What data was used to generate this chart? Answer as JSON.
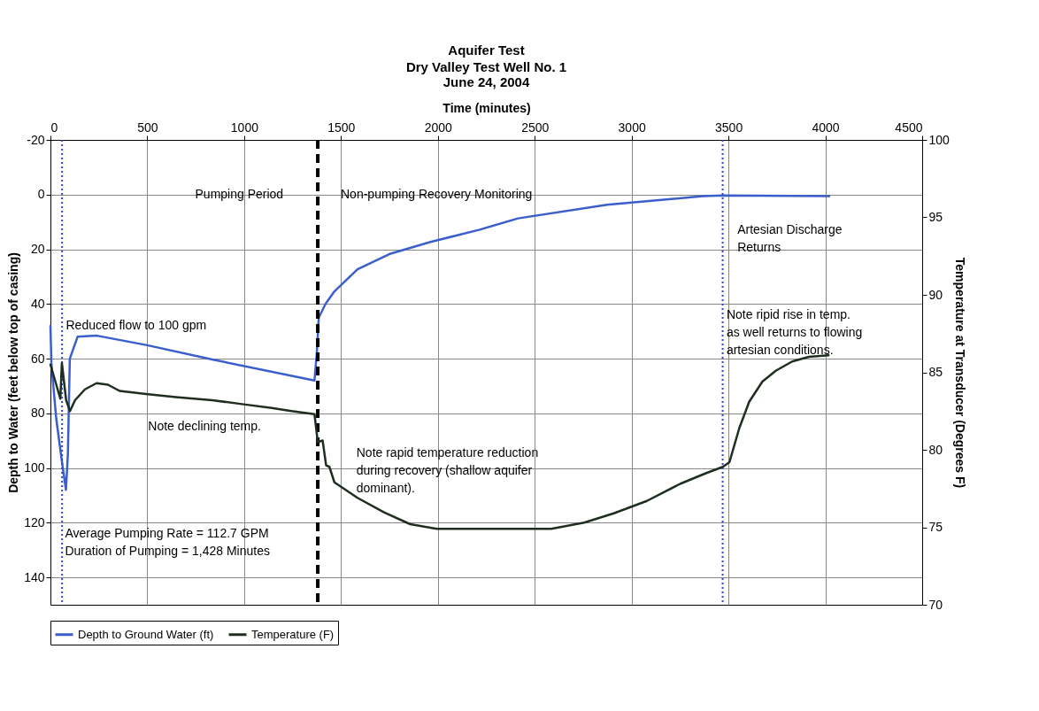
{
  "chart_data": {
    "type": "line",
    "title": "Aquifer Test",
    "subtitle": "Dry Valley Test Well No. 1\nJune 24, 2004",
    "xlabel": "Time (minutes)",
    "ylabel": "Depth to Water (feet below top of casing)",
    "y2label": "Temperature at Transducer (Degrees F)",
    "xlim": [
      0,
      4500
    ],
    "xticks": [
      0,
      500,
      1000,
      1500,
      2000,
      2500,
      3000,
      3500,
      4000,
      4500
    ],
    "ylim": [
      150,
      -20
    ],
    "yticks": [
      -20,
      0,
      20,
      40,
      60,
      80,
      100,
      120,
      140
    ],
    "y2lim": [
      70,
      100
    ],
    "y2ticks": [
      70,
      75,
      80,
      85,
      90,
      95,
      100
    ],
    "grid": true,
    "legend": "bottom",
    "marker": "none",
    "line_style": "solid",
    "series": [
      {
        "name": "Depth to Ground Water (ft)",
        "color": "#3a5fcd",
        "x": [
          0,
          5,
          30,
          60,
          80,
          90,
          100,
          140,
          240,
          494,
          835,
          1363,
          1375,
          1385,
          1420,
          1466,
          1585,
          1756,
          1958,
          2212,
          2414,
          2873,
          3369,
          3470,
          4020
        ],
        "values": [
          48,
          62,
          82,
          98,
          108,
          95,
          60,
          52,
          51.6,
          55,
          60.3,
          68,
          58,
          45,
          40,
          35.4,
          27.3,
          21.6,
          17.4,
          12.9,
          8.7,
          3.7,
          0.6,
          0.3,
          0.6
        ]
      },
      {
        "name": "Temperature (F)",
        "color": "#1f2f1f",
        "axis": "y2",
        "x": [
          0,
          51,
          59,
          81,
          101,
          127,
          178,
          238,
          297,
          357,
          494,
          647,
          835,
          988,
          1142,
          1244,
          1363,
          1380,
          1405,
          1423,
          1440,
          1466,
          1585,
          1722,
          1857,
          1994,
          2192,
          2499,
          2585,
          2755,
          2908,
          3079,
          3250,
          3386,
          3471,
          3505,
          3556,
          3607,
          3675,
          3744,
          3829,
          3915,
          4017
        ],
        "values": [
          85.5,
          83.3,
          85.6,
          83.2,
          82.5,
          83.2,
          83.9,
          84.3,
          84.2,
          83.8,
          83.6,
          83.4,
          83.2,
          82.95,
          82.7,
          82.5,
          82.3,
          80.5,
          80.6,
          79.0,
          78.9,
          77.9,
          76.9,
          75.96,
          75.2,
          74.9,
          74.9,
          74.9,
          74.9,
          75.3,
          75.9,
          76.7,
          77.8,
          78.5,
          78.9,
          79.2,
          81.4,
          83.1,
          84.4,
          85.1,
          85.7,
          86.0,
          86.1
        ]
      }
    ],
    "ref_lines": [
      {
        "axis": "x",
        "value": 1380,
        "color": "#000000",
        "line_style": "dashed"
      },
      {
        "axis": "x",
        "value": 60,
        "color": "#3344cc",
        "line_style": "dotted"
      },
      {
        "axis": "x",
        "value": 3470,
        "color": "#3344cc",
        "line_style": "dotted"
      }
    ],
    "annotations": [
      "Pumping Period",
      "Non-pumping Recovery Monitoring",
      "Artesian Discharge\nReturns",
      {
        "text": "Reduced flow to 100 gpm",
        "x": 80,
        "y": 48
      },
      "Note declining temp.",
      "Note rapid temperature reduction\nduring recovery (shallow aquifer\ndominant).",
      {
        "text": "Average Pumping Rate = 112.7 GPM\nDuration of Pumping = 1,428 Minutes",
        "x": 75,
        "y": 124
      },
      {
        "text": "Note ripid rise in temp.\nas well returns to flowing\nartesian conditions.",
        "x": 3490,
        "y": 44
      }
    ]
  }
}
